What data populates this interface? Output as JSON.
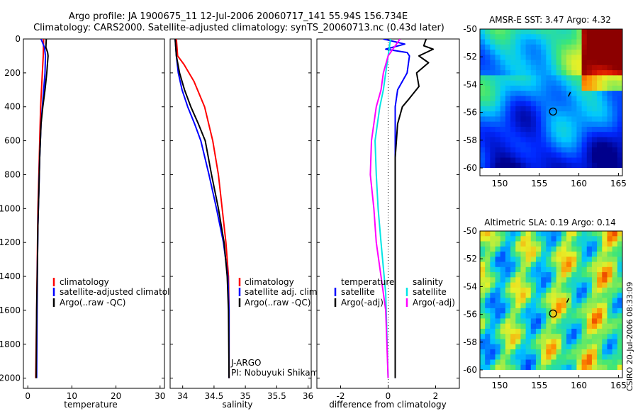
{
  "title": {
    "line1": "Argo profile: JA 1900675_11 12-Jul-2006 20060717_141 55.94S 156.734E",
    "line2": "Climatology: CARS2000. Satellite-adjusted climatology: synTS_20060713.nc (0.43d later)"
  },
  "stamp": "CSIRO 20-Jul-2006 08:33:09",
  "chart_data": [
    {
      "id": "temperature",
      "type": "line",
      "xlabel": "temperature",
      "ylabel": "",
      "xlim": [
        -1,
        31
      ],
      "ylim": [
        0,
        2060
      ],
      "y_inverted": true,
      "xticks": [
        0,
        10,
        20,
        30
      ],
      "yticks": [
        0,
        200,
        400,
        600,
        800,
        1000,
        1200,
        1400,
        1600,
        1800,
        2000
      ],
      "legend": [
        "climatology",
        "satellite-adjusted climatology",
        "Argo(..raw -QC)"
      ],
      "legend_position": "lower-right",
      "series": [
        {
          "name": "climatology",
          "color": "#ff0000",
          "x": [
            3.6,
            3.5,
            3.3,
            3.1,
            2.9,
            2.7,
            2.5,
            2.3,
            2.2,
            2.1,
            2.0,
            1.8
          ],
          "y": [
            0,
            100,
            200,
            300,
            400,
            600,
            800,
            1000,
            1200,
            1400,
            1600,
            2000
          ]
        },
        {
          "name": "satellite-adjusted climatology",
          "color": "#0000ff",
          "x": [
            3.0,
            3.8,
            4.0,
            3.9,
            3.6,
            3.0,
            2.7,
            2.5,
            2.3,
            2.2,
            2.1,
            2.0
          ],
          "y": [
            0,
            50,
            100,
            200,
            300,
            500,
            700,
            900,
            1100,
            1300,
            1600,
            2000
          ]
        },
        {
          "name": "Argo(..raw -QC)",
          "color": "#000000",
          "x": [
            4.2,
            4.1,
            4.5,
            4.6,
            4.3,
            3.9,
            3.4,
            3.0,
            2.7,
            2.5,
            2.3,
            2.2,
            2.0,
            1.9
          ],
          "y": [
            0,
            50,
            80,
            100,
            200,
            300,
            400,
            500,
            700,
            900,
            1100,
            1300,
            1600,
            2000
          ]
        }
      ]
    },
    {
      "id": "salinity",
      "type": "line",
      "xlabel": "salinity",
      "ylabel": "",
      "xlim": [
        33.8,
        36.05
      ],
      "ylim": [
        0,
        2060
      ],
      "y_inverted": true,
      "xticks": [
        34,
        34.5,
        35,
        35.5,
        36
      ],
      "legend": [
        "climatology",
        "satellite adj. clim.",
        "Argo(..raw -QC)"
      ],
      "legend_position": "lower-right",
      "annotation": [
        "J-ARGO",
        "PI: Nobuyuki Shikama"
      ],
      "series": [
        {
          "name": "climatology",
          "color": "#ff0000",
          "x": [
            33.9,
            33.92,
            34.02,
            34.18,
            34.35,
            34.48,
            34.57,
            34.63,
            34.69,
            34.73,
            34.74,
            34.74
          ],
          "y": [
            0,
            100,
            150,
            250,
            400,
            600,
            800,
            1000,
            1200,
            1400,
            1600,
            2000
          ]
        },
        {
          "name": "satellite adj. clim.",
          "color": "#0000ff",
          "x": [
            33.88,
            33.9,
            33.93,
            33.99,
            34.08,
            34.19,
            34.29,
            34.42,
            34.54,
            34.65,
            34.72,
            34.74,
            34.74
          ],
          "y": [
            0,
            100,
            200,
            300,
            400,
            500,
            600,
            800,
            1000,
            1200,
            1400,
            1600,
            2000
          ]
        },
        {
          "name": "Argo(..raw -QC)",
          "color": "#000000",
          "x": [
            33.88,
            33.9,
            33.95,
            34.03,
            34.13,
            34.25,
            34.36,
            34.46,
            34.57,
            34.66,
            34.71,
            34.73,
            34.74
          ],
          "y": [
            0,
            100,
            200,
            300,
            400,
            500,
            600,
            800,
            1000,
            1200,
            1400,
            1600,
            2000
          ]
        }
      ]
    },
    {
      "id": "difference",
      "type": "line",
      "xlabel": "difference from climatology",
      "ylabel": "",
      "xlim": [
        -3,
        3
      ],
      "ylim": [
        0,
        2060
      ],
      "y_inverted": true,
      "xticks": [
        -2,
        0,
        2
      ],
      "zero_line": true,
      "legend_temperature_title": "temperature",
      "legend_salinity_title": "salinity",
      "legend_temperature": [
        "satellite",
        "Argo(-adj)"
      ],
      "legend_salinity": [
        "satellite",
        "Argo(-adj)"
      ],
      "legend_position": "lower-center",
      "series": [
        {
          "name": "temperature satellite",
          "color": "#0000ff",
          "x": [
            -0.2,
            0.7,
            -0.1,
            0.8,
            0.9,
            0.8,
            0.4,
            0.3,
            0.3,
            0.3,
            0.3,
            0.3,
            0.3
          ],
          "y": [
            0,
            30,
            60,
            80,
            100,
            200,
            300,
            400,
            500,
            800,
            1000,
            1500,
            2000
          ]
        },
        {
          "name": "temperature Argo(-adj)",
          "color": "#000000",
          "x": [
            1.6,
            1.5,
            1.9,
            1.3,
            1.7,
            1.2,
            1.3,
            0.9,
            0.6,
            0.4,
            0.3,
            0.3,
            0.3,
            0.3
          ],
          "y": [
            0,
            40,
            60,
            100,
            140,
            200,
            280,
            350,
            400,
            500,
            700,
            1000,
            1500,
            2000
          ]
        },
        {
          "name": "salinity satellite",
          "color": "#00e5e5",
          "x": [
            0.1,
            0.0,
            -0.1,
            -0.2,
            -0.35,
            -0.45,
            -0.55,
            -0.5,
            -0.42,
            -0.3,
            -0.1,
            0.0
          ],
          "y": [
            0,
            100,
            200,
            300,
            400,
            500,
            600,
            800,
            1000,
            1200,
            1500,
            2000
          ]
        },
        {
          "name": "salinity Argo(-adj)",
          "color": "#ff00ff",
          "x": [
            0.5,
            0.0,
            -0.2,
            -0.3,
            -0.5,
            -0.6,
            -0.7,
            -0.75,
            -0.6,
            -0.5,
            -0.3,
            -0.1,
            0.0
          ],
          "y": [
            0,
            100,
            200,
            300,
            400,
            500,
            600,
            800,
            1000,
            1200,
            1400,
            1600,
            2000
          ]
        }
      ]
    },
    {
      "id": "sst-map",
      "type": "heatmap",
      "title": "AMSR-E SST: 3.47 Argo: 4.32",
      "xlim": [
        147.5,
        165.5
      ],
      "ylim": [
        -60,
        -50
      ],
      "xticks": [
        150,
        155,
        160,
        165
      ],
      "yticks": [
        -50,
        -52,
        -54,
        -56,
        -58,
        -60
      ],
      "marker": {
        "lon": 156.734,
        "lat": -55.94
      },
      "track_mark": {
        "lon": 158.8,
        "lat": -54.7
      }
    },
    {
      "id": "sla-map",
      "type": "heatmap",
      "title": "Altimetric SLA: 0.19 Argo: 0.14",
      "xlim": [
        147.5,
        165.5
      ],
      "ylim": [
        -60,
        -50
      ],
      "xticks": [
        150,
        155,
        160,
        165
      ],
      "yticks": [
        -50,
        -52,
        -54,
        -56,
        -58,
        -60
      ],
      "marker": {
        "lon": 156.734,
        "lat": -55.94
      },
      "track_mark": {
        "lon": 158.6,
        "lat": -55.0
      }
    }
  ]
}
